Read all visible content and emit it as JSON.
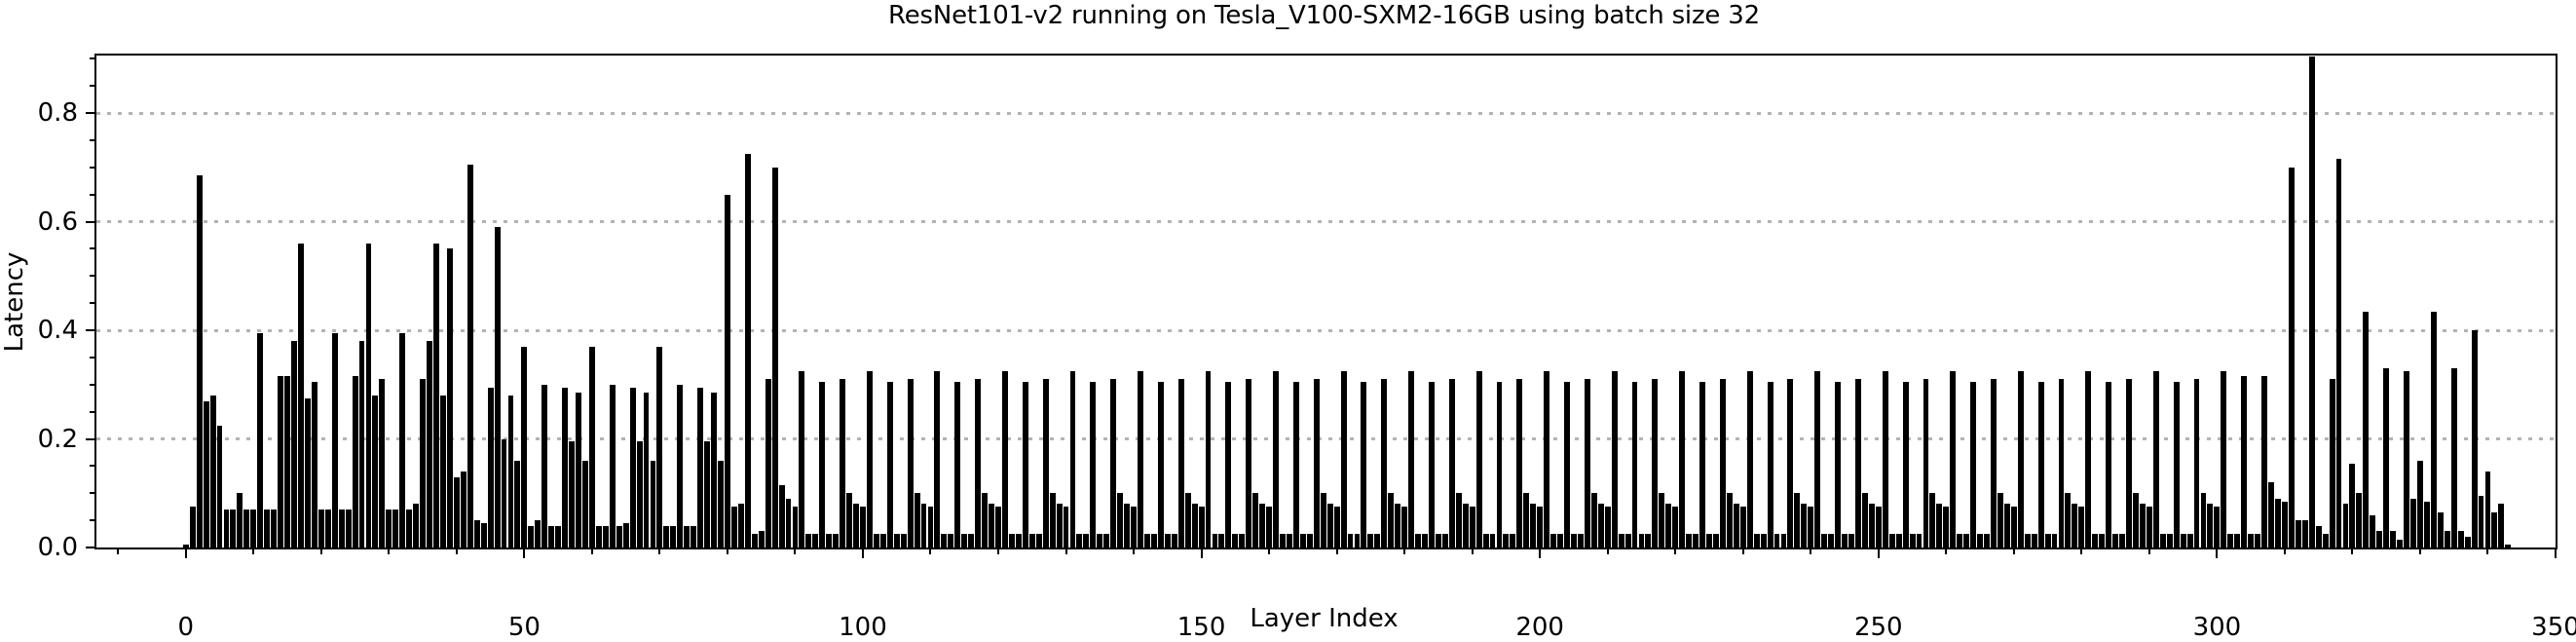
{
  "chart_data": {
    "type": "bar",
    "title": "ResNet101-v2 running on Tesla_V100-SXM2-16GB using batch size 32",
    "xlabel": "Layer Index",
    "ylabel": "Latency",
    "xlim": [
      -13.2,
      350
    ],
    "ylim": [
      0,
      0.906
    ],
    "grid": "dotted horizontal at major y ticks",
    "legend": "none",
    "bar_color": "#000000",
    "grid_color": "#b3b3b3",
    "x_tick_labels": [
      "0",
      "50",
      "100",
      "150",
      "200",
      "250",
      "300",
      "350"
    ],
    "x_ticks_major": [
      0,
      50,
      100,
      150,
      200,
      250,
      300,
      350
    ],
    "x_minor_tick_step": 10,
    "y_tick_labels": [
      "0.0",
      "0.2",
      "0.4",
      "0.6",
      "0.8"
    ],
    "y_ticks_major": [
      0.0,
      0.2,
      0.4,
      0.6,
      0.8
    ],
    "y_minor_tick_step": 0.05,
    "grid_values": [
      0.2,
      0.4,
      0.6,
      0.8
    ],
    "x_start": 0,
    "values": [
      0.005,
      0.075,
      0.685,
      0.27,
      0.28,
      0.225,
      0.07,
      0.07,
      0.1,
      0.07,
      0.07,
      0.395,
      0.07,
      0.07,
      0.315,
      0.315,
      0.38,
      0.56,
      0.275,
      0.305,
      0.07,
      0.07,
      0.395,
      0.07,
      0.07,
      0.315,
      0.38,
      0.56,
      0.28,
      0.31,
      0.07,
      0.07,
      0.395,
      0.07,
      0.08,
      0.31,
      0.38,
      0.56,
      0.28,
      0.55,
      0.13,
      0.14,
      0.705,
      0.05,
      0.045,
      0.295,
      0.59,
      0.2,
      0.28,
      0.16,
      0.37,
      0.04,
      0.05,
      0.3,
      0.04,
      0.04,
      0.295,
      0.195,
      0.285,
      0.16,
      0.37,
      0.04,
      0.04,
      0.3,
      0.04,
      0.045,
      0.295,
      0.195,
      0.285,
      0.16,
      0.37,
      0.04,
      0.04,
      0.3,
      0.04,
      0.04,
      0.295,
      0.195,
      0.285,
      0.16,
      0.65,
      0.075,
      0.08,
      0.725,
      0.025,
      0.03,
      0.31,
      0.7,
      0.115,
      0.09,
      0.075,
      0.325,
      0.025,
      0.025,
      0.305,
      0.025,
      0.025,
      0.31,
      0.1,
      0.08,
      0.075,
      0.325,
      0.025,
      0.025,
      0.305,
      0.025,
      0.025,
      0.31,
      0.1,
      0.08,
      0.075,
      0.325,
      0.025,
      0.025,
      0.305,
      0.025,
      0.025,
      0.31,
      0.1,
      0.08,
      0.075,
      0.325,
      0.025,
      0.025,
      0.305,
      0.025,
      0.025,
      0.31,
      0.1,
      0.08,
      0.075,
      0.325,
      0.025,
      0.025,
      0.305,
      0.025,
      0.025,
      0.31,
      0.1,
      0.08,
      0.075,
      0.325,
      0.025,
      0.025,
      0.305,
      0.025,
      0.025,
      0.31,
      0.1,
      0.08,
      0.075,
      0.325,
      0.025,
      0.025,
      0.305,
      0.025,
      0.025,
      0.31,
      0.1,
      0.08,
      0.075,
      0.325,
      0.025,
      0.025,
      0.305,
      0.025,
      0.025,
      0.31,
      0.1,
      0.08,
      0.075,
      0.325,
      0.025,
      0.025,
      0.305,
      0.025,
      0.025,
      0.31,
      0.1,
      0.08,
      0.075,
      0.325,
      0.025,
      0.025,
      0.305,
      0.025,
      0.025,
      0.31,
      0.1,
      0.08,
      0.075,
      0.325,
      0.025,
      0.025,
      0.305,
      0.025,
      0.025,
      0.31,
      0.1,
      0.08,
      0.075,
      0.325,
      0.025,
      0.025,
      0.305,
      0.025,
      0.025,
      0.31,
      0.1,
      0.08,
      0.075,
      0.325,
      0.025,
      0.025,
      0.305,
      0.025,
      0.025,
      0.31,
      0.1,
      0.08,
      0.075,
      0.325,
      0.025,
      0.025,
      0.305,
      0.025,
      0.025,
      0.31,
      0.1,
      0.08,
      0.075,
      0.325,
      0.025,
      0.025,
      0.305,
      0.025,
      0.025,
      0.31,
      0.1,
      0.08,
      0.075,
      0.325,
      0.025,
      0.025,
      0.305,
      0.025,
      0.025,
      0.31,
      0.1,
      0.08,
      0.075,
      0.325,
      0.025,
      0.025,
      0.305,
      0.025,
      0.025,
      0.31,
      0.1,
      0.08,
      0.075,
      0.325,
      0.025,
      0.025,
      0.305,
      0.025,
      0.025,
      0.31,
      0.1,
      0.08,
      0.075,
      0.325,
      0.025,
      0.025,
      0.305,
      0.025,
      0.025,
      0.31,
      0.1,
      0.08,
      0.075,
      0.325,
      0.025,
      0.025,
      0.305,
      0.025,
      0.025,
      0.31,
      0.1,
      0.08,
      0.075,
      0.325,
      0.025,
      0.025,
      0.305,
      0.025,
      0.025,
      0.31,
      0.1,
      0.08,
      0.075,
      0.325,
      0.025,
      0.025,
      0.315,
      0.025,
      0.025,
      0.315,
      0.12,
      0.09,
      0.085,
      0.7,
      0.05,
      0.05,
      0.905,
      0.04,
      0.025,
      0.31,
      0.715,
      0.08,
      0.155,
      0.1,
      0.435,
      0.06,
      0.03,
      0.33,
      0.03,
      0.015,
      0.325,
      0.09,
      0.16,
      0.085,
      0.435,
      0.065,
      0.03,
      0.33,
      0.03,
      0.02,
      0.4,
      0.095,
      0.14,
      0.065,
      0.08,
      0.005
    ]
  }
}
